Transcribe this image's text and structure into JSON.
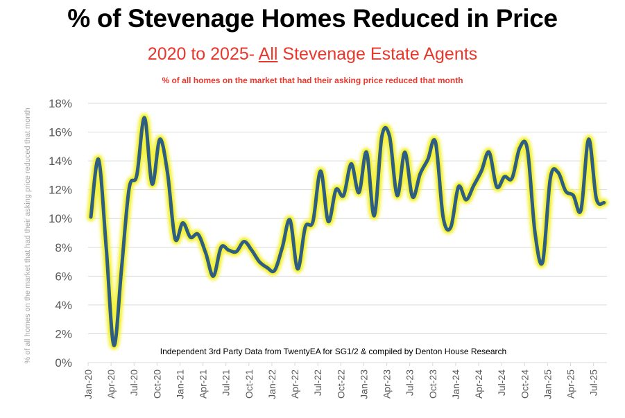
{
  "chart_data": {
    "type": "line",
    "title": "% of Stevenage Homes Reduced in Price",
    "subtitle_parts": [
      "2020 to 2025- ",
      "All",
      " Stevenage Estate Agents"
    ],
    "subnote": "% of all homes on the market that had their asking price reduced that month",
    "ylabel": "% of all homes on the market that had their asking price reduced that month",
    "xlabel": "",
    "source": "Independent 3rd Party Data from TwentyEA for SG1/2 & compiled by Denton House Research",
    "ylim": [
      0,
      18
    ],
    "yticks": [
      "0%",
      "2%",
      "4%",
      "6%",
      "8%",
      "10%",
      "12%",
      "14%",
      "16%",
      "18%"
    ],
    "ytick_values": [
      0,
      2,
      4,
      6,
      8,
      10,
      12,
      14,
      16,
      18
    ],
    "xtick_labels": [
      "Jan-20",
      "Apr-20",
      "Jul-20",
      "Oct-20",
      "Jan-21",
      "Apr-21",
      "Jul-21",
      "Oct-21",
      "Jan-22",
      "Apr-22",
      "Jul-22",
      "Oct-22",
      "Jan-23",
      "Apr-23",
      "Jul-23",
      "Oct-23",
      "Jan-24",
      "Apr-24",
      "Jul-24",
      "Oct-24",
      "Jan-25",
      "Apr-25",
      "Jul-25"
    ],
    "grid": true,
    "legend": "none",
    "x_start": "Jan-20",
    "x_end": "Aug-25",
    "series": [
      {
        "name": "% reduced",
        "line_color": "#2e5f82",
        "glow_color": "#f4f23a",
        "values": [
          10.1,
          14.1,
          8.0,
          1.2,
          6.5,
          12.1,
          13.0,
          17.0,
          12.4,
          15.5,
          13.2,
          8.6,
          9.7,
          8.7,
          8.9,
          7.6,
          6.0,
          8.0,
          7.8,
          7.7,
          8.4,
          7.8,
          7.0,
          6.6,
          6.4,
          8.0,
          9.9,
          6.5,
          9.4,
          9.8,
          13.3,
          9.8,
          12.0,
          11.6,
          13.8,
          11.8,
          14.6,
          10.2,
          15.7,
          15.7,
          11.6,
          14.6,
          11.5,
          13.1,
          14.1,
          15.3,
          10.1,
          9.4,
          12.2,
          11.3,
          12.3,
          13.3,
          14.6,
          12.2,
          12.9,
          12.8,
          14.9,
          14.8,
          9.0,
          7.0,
          12.8,
          13.2,
          11.9,
          11.6,
          10.6,
          15.5,
          11.4,
          11.1
        ]
      }
    ]
  }
}
